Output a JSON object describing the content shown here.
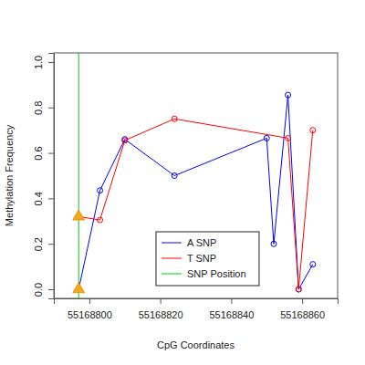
{
  "chart_data": {
    "type": "line",
    "x_label": "CpG Coordinates",
    "y_label": "Methylation Frequency",
    "xlim": [
      55168790,
      55168870
    ],
    "xticks": [
      55168800,
      55168820,
      55168840,
      55168860
    ],
    "ylim": [
      -0.04,
      1.04
    ],
    "yticks": [
      {
        "value": 0,
        "label": "0.0"
      },
      0.2,
      0.4,
      0.6,
      0.8,
      {
        "value": 1,
        "label": "1.0"
      }
    ],
    "legend": "right",
    "series": [
      {
        "name": "A SNP",
        "color": "#0000ff",
        "marker": "circle",
        "x": [
          55168797,
          55168803,
          55168810,
          55168824,
          55168850,
          55168852,
          55168856,
          55168859,
          55168863
        ],
        "values": [
          0.0,
          0.435,
          0.66,
          0.5,
          0.665,
          0.2,
          0.855,
          0.0,
          0.11
        ]
      },
      {
        "name": "T SNP",
        "color": "#ff0000",
        "marker": "circle",
        "x": [
          55168797,
          55168803,
          55168810,
          55168824,
          55168856,
          55168859,
          55168863
        ],
        "values": [
          0.32,
          0.305,
          0.655,
          0.75,
          0.665,
          0.0,
          0.7
        ]
      },
      {
        "name": "SNP Position",
        "color": "#00cc00",
        "type": "vline",
        "x": [
          55168797
        ]
      }
    ]
  }
}
